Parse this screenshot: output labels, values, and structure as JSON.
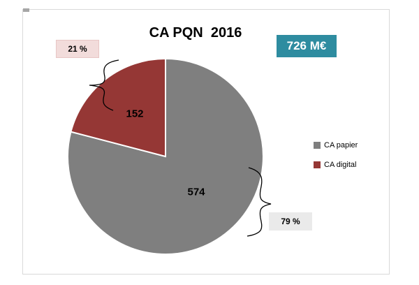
{
  "chart_data": {
    "type": "pie",
    "title": "CA PQN  2016",
    "badge": "726 M€",
    "start_angle_deg": 0,
    "direction": "clockwise",
    "slices": [
      {
        "name": "CA papier",
        "value": 574,
        "percent_label": "79 %",
        "color": "#7F7F7F"
      },
      {
        "name": "CA digital",
        "value": 152,
        "percent_label": "21 %",
        "color": "#953735"
      }
    ],
    "legend": [
      {
        "label": "CA papier",
        "color": "#7F7F7F"
      },
      {
        "label": "CA digital",
        "color": "#953735"
      }
    ],
    "legend_position": "right"
  },
  "colors": {
    "badge_bg": "#2E8CA0",
    "badge_text": "#FFFFFF",
    "pct_digital_bg": "#F2DCDB",
    "pct_papier_bg": "#EAEAEA",
    "chart_border": "#D9D9D9",
    "background": "#FFFFFF",
    "callout_stroke": "#000000"
  }
}
